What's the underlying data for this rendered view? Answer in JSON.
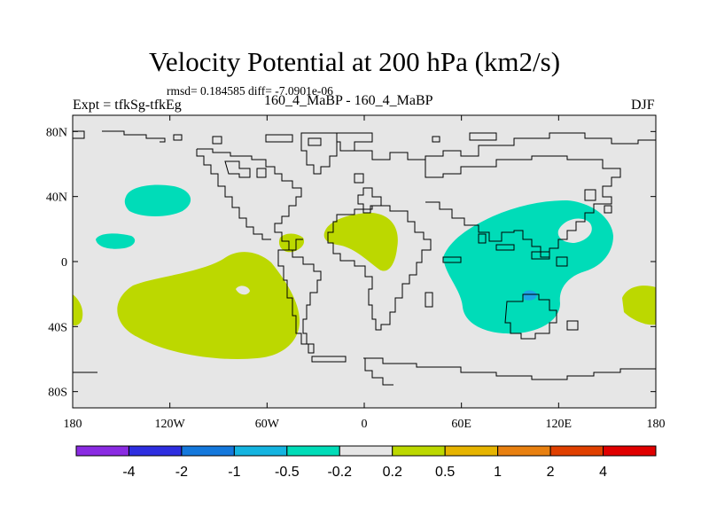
{
  "title": "Velocity Potential at 200 hPa (km2/s)",
  "stats": "rmsd= 0.184585 diff= -7.0901e-06",
  "experiment": "Expt = tfkSg-tfkEg",
  "subtitle": "160_4_MaBP - 160_4_MaBP",
  "season": "DJF",
  "map": {
    "lon_range": [
      -180,
      180
    ],
    "lat_range": [
      -90,
      90
    ],
    "x_ticks": [
      {
        "value": -180,
        "label": "180"
      },
      {
        "value": -120,
        "label": "120W"
      },
      {
        "value": -60,
        "label": "60W"
      },
      {
        "value": 0,
        "label": "0"
      },
      {
        "value": 60,
        "label": "60E"
      },
      {
        "value": 120,
        "label": "120E"
      },
      {
        "value": 180,
        "label": "180"
      }
    ],
    "y_ticks": [
      {
        "value": 80,
        "label": "80N"
      },
      {
        "value": 40,
        "label": "40N"
      },
      {
        "value": 0,
        "label": "0"
      },
      {
        "value": -40,
        "label": "40S"
      },
      {
        "value": -80,
        "label": "80S"
      }
    ],
    "colors": {
      "background": "#e6e6e6",
      "positive_0.2_0.5": "#bcd800",
      "negative_-0.5_-0.2": "#00dcb8",
      "negative_-1_-0.5": "#1ea4e6"
    }
  },
  "colorbar": {
    "colors": [
      "#8a2be2",
      "#2e2ee0",
      "#1478dc",
      "#14b4e0",
      "#00dcb8",
      "#e6e6e6",
      "#bcd800",
      "#e6b400",
      "#e88010",
      "#e04000",
      "#e00000"
    ],
    "labels": [
      "-4",
      "-2",
      "-1",
      "-0.5",
      "-0.2",
      "0.2",
      "0.5",
      "1",
      "2",
      "4"
    ]
  }
}
